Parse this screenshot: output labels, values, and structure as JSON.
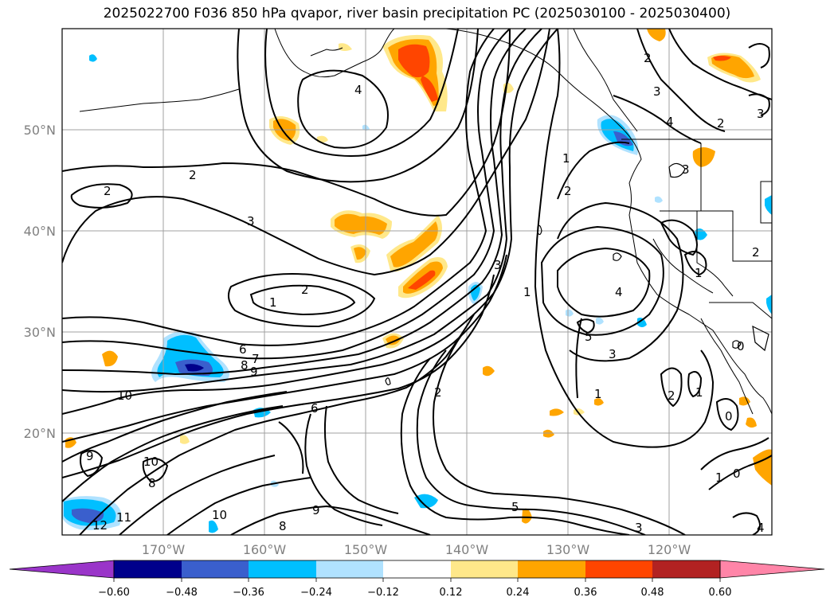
{
  "title": "2025022700 F036 850 hPa qvapor, river basin precipitation PC (2025030100 - 2025030400)",
  "latitude_labels": [
    "50°N",
    "40°N",
    "30°N",
    "20°N"
  ],
  "longitude_labels": [
    "170°W",
    "160°W",
    "150°W",
    "140°W",
    "130°W",
    "120°W"
  ],
  "colorbar": {
    "tick_labels": [
      "−0.60",
      "−0.48",
      "−0.36",
      "−0.24",
      "−0.12",
      "0.12",
      "0.24",
      "0.36",
      "0.48",
      "0.60"
    ],
    "under_color": "#9a35c9",
    "over_color": "#ff85a8",
    "colors": [
      "#9a35c9",
      "#00008b",
      "#3a5fcd",
      "#00bfff",
      "#b0e2ff",
      "#ffffff",
      "#ffe88a",
      "#ffa500",
      "#ff4500",
      "#b22222",
      "#ff85a8"
    ]
  },
  "contour_labels": [
    "2",
    "2",
    "3",
    "4",
    "2",
    "1",
    "6",
    "7",
    "8",
    "9",
    "10",
    "10",
    "11",
    "12",
    "10",
    "8",
    "9",
    "2",
    "1",
    "2",
    "3",
    "4",
    "5",
    "3",
    "1",
    "2",
    "1",
    "0",
    "1",
    "0",
    "2",
    "5",
    "3",
    "3",
    "4",
    "2",
    "1",
    "3",
    "9",
    "8",
    "6",
    "2",
    "4",
    "3",
    "1",
    "0"
  ]
}
